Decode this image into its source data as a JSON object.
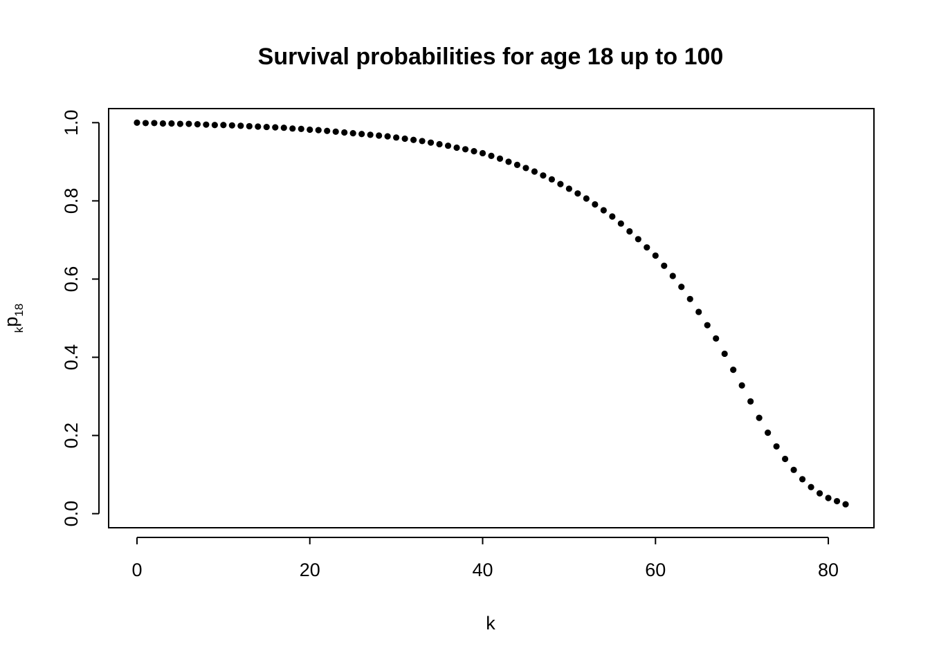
{
  "chart_data": {
    "type": "scatter",
    "title": "Survival probabilities for age 18 up to 100",
    "xlabel": "k",
    "ylabel": {
      "prefix": "k",
      "main": "p",
      "suffix": "18"
    },
    "xlim": [
      -3.28,
      85.28
    ],
    "ylim": [
      -0.036,
      1.036
    ],
    "x_ticks": [
      0,
      20,
      40,
      60,
      80
    ],
    "x_tick_labels": [
      "0",
      "20",
      "40",
      "60",
      "80"
    ],
    "y_ticks": [
      0.0,
      0.2,
      0.4,
      0.6,
      0.8,
      1.0
    ],
    "y_tick_labels": [
      "0.0",
      "0.2",
      "0.4",
      "0.6",
      "0.8",
      "1.0"
    ],
    "grid": false,
    "legend": "none",
    "point_color": "#000000",
    "series": [
      {
        "x": [
          0,
          1,
          2,
          3,
          4,
          5,
          6,
          7,
          8,
          9,
          10,
          11,
          12,
          13,
          14,
          15,
          16,
          17,
          18,
          19,
          20,
          21,
          22,
          23,
          24,
          25,
          26,
          27,
          28,
          29,
          30,
          31,
          32,
          33,
          34,
          35,
          36,
          37,
          38,
          39,
          40,
          41,
          42,
          43,
          44,
          45,
          46,
          47,
          48,
          49,
          50,
          51,
          52,
          53,
          54,
          55,
          56,
          57,
          58,
          59,
          60,
          61,
          62,
          63,
          64,
          65,
          66,
          67,
          68,
          69,
          70,
          71,
          72,
          73,
          74,
          75,
          76,
          77,
          78,
          79,
          80,
          81,
          82
        ],
        "y": [
          1.0,
          0.999,
          0.999,
          0.998,
          0.998,
          0.997,
          0.997,
          0.996,
          0.995,
          0.994,
          0.994,
          0.993,
          0.992,
          0.991,
          0.99,
          0.989,
          0.988,
          0.987,
          0.985,
          0.984,
          0.982,
          0.981,
          0.979,
          0.977,
          0.975,
          0.973,
          0.971,
          0.969,
          0.967,
          0.965,
          0.962,
          0.959,
          0.956,
          0.953,
          0.949,
          0.945,
          0.941,
          0.936,
          0.932,
          0.927,
          0.922,
          0.915,
          0.908,
          0.9,
          0.892,
          0.884,
          0.875,
          0.865,
          0.855,
          0.843,
          0.831,
          0.819,
          0.806,
          0.791,
          0.776,
          0.76,
          0.742,
          0.722,
          0.702,
          0.681,
          0.66,
          0.634,
          0.608,
          0.58,
          0.549,
          0.516,
          0.482,
          0.448,
          0.409,
          0.368,
          0.328,
          0.287,
          0.245,
          0.207,
          0.172,
          0.14,
          0.112,
          0.088,
          0.068,
          0.052,
          0.04,
          0.032,
          0.024
        ]
      }
    ]
  }
}
